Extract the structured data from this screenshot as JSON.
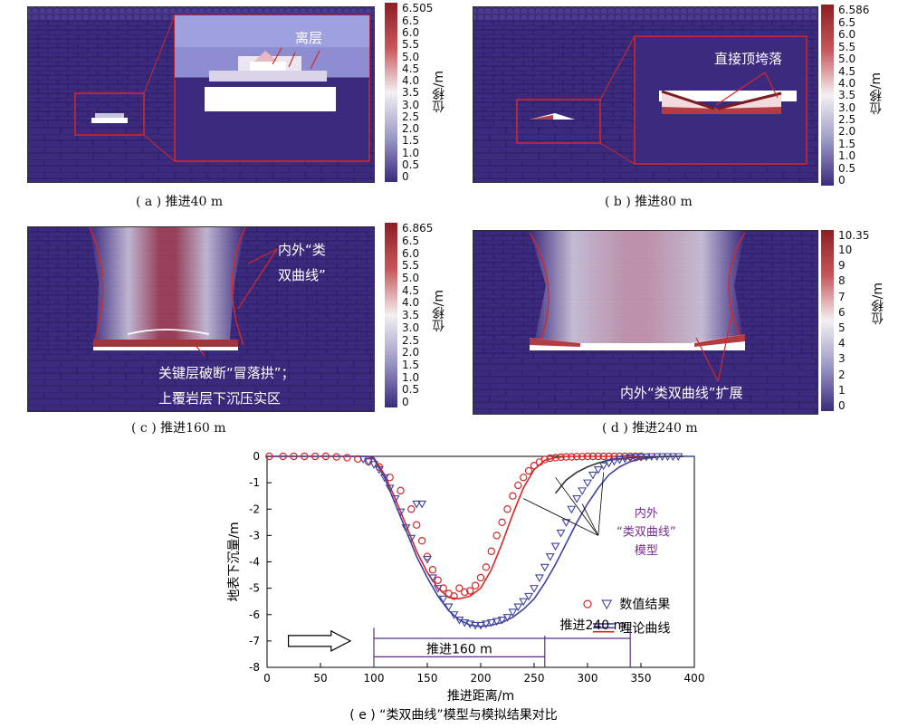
{
  "panels": {
    "a": {
      "caption": "( a ) 推进40 m",
      "max": "6.505",
      "annotation": "离层"
    },
    "b": {
      "caption": "( b ) 推进80 m",
      "max": "6.586",
      "annotation": "直接顶垮落"
    },
    "c": {
      "caption": "( c ) 推进160 m",
      "max": "6.865",
      "annotation_top_1": "内外“类",
      "annotation_top_2": "双曲线”",
      "annotation_bottom_1": "关键层破断“冒落拱”；",
      "annotation_bottom_2": "上覆岩层下沉压实区"
    },
    "d": {
      "caption": "( d ) 推进240 m",
      "max": "10.35",
      "annotation": "内外“类双曲线”扩展"
    }
  },
  "colorbar_title": "位移/m",
  "colorbar_ticks_standard": [
    "6.5",
    "6.0",
    "5.5",
    "5.0",
    "4.5",
    "4.0",
    "3.5",
    "3.0",
    "2.5",
    "2.0",
    "1.5",
    "1.0",
    "0.5",
    "0"
  ],
  "colorbar_ticks_d": [
    "10",
    "9",
    "8",
    "7",
    "6",
    "5",
    "4",
    "3",
    "2",
    "1",
    "0"
  ],
  "colors": {
    "low": "#3b2a7e",
    "mid": "#f4f0f2",
    "high": "#8c1f24",
    "red_line": "#d62728",
    "blue_line": "#3f43a0",
    "model_text": "#7a2a95"
  },
  "chart_data": {
    "type": "scatter",
    "caption": "( e ) “类双曲线”模型与模拟结果对比",
    "xlabel": "推进距离/m",
    "ylabel": "地表下沉量/m",
    "xlim": [
      0,
      400
    ],
    "ylim": [
      -8,
      0
    ],
    "xticks": [
      0,
      50,
      100,
      150,
      200,
      250,
      300,
      350,
      400
    ],
    "yticks": [
      0,
      -1,
      -2,
      -3,
      -4,
      -5,
      -6,
      -7,
      -8
    ],
    "legend": {
      "numeric": "数值结果",
      "theory": "理论曲线",
      "position": "right"
    },
    "annotations": {
      "model_1": "内外",
      "model_2": "“类双曲线”",
      "model_3": "模型",
      "advance_160": "推进160 m",
      "advance_240": "推进240 m"
    },
    "series": [
      {
        "name": "推进160 m 数值结果",
        "marker": "circle",
        "color": "#d62728",
        "x": [
          2,
          15,
          25,
          35,
          45,
          55,
          65,
          75,
          85,
          95,
          105,
          115,
          125,
          135,
          140,
          145,
          150,
          155,
          160,
          165,
          170,
          175,
          180,
          185,
          190,
          195,
          200,
          205,
          210,
          215,
          220,
          225,
          230,
          235,
          240,
          245,
          250,
          255,
          260,
          265,
          270,
          275,
          280,
          285,
          290,
          295,
          300,
          305,
          310,
          315,
          320,
          325,
          330,
          335,
          340,
          345,
          350
        ],
        "y": [
          0,
          0,
          0,
          0,
          0,
          0,
          -0.02,
          -0.05,
          -0.1,
          -0.2,
          -0.4,
          -0.8,
          -1.3,
          -2.0,
          -2.6,
          -3.2,
          -3.8,
          -4.3,
          -4.7,
          -5.0,
          -5.2,
          -5.3,
          -5.0,
          -5.15,
          -5.1,
          -4.9,
          -4.6,
          -4.2,
          -3.6,
          -3.0,
          -2.5,
          -2.0,
          -1.5,
          -1.1,
          -0.8,
          -0.55,
          -0.35,
          -0.22,
          -0.12,
          -0.07,
          -0.05,
          -0.03,
          -0.02,
          -0.02,
          -0.01,
          -0.01,
          0,
          0,
          0,
          0,
          0,
          0,
          0,
          0,
          0,
          0,
          0
        ]
      },
      {
        "name": "推进240 m 数值结果",
        "marker": "triangle",
        "color": "#3f43a0",
        "x": [
          90,
          95,
          100,
          105,
          110,
          115,
          120,
          125,
          130,
          135,
          140,
          145,
          150,
          155,
          160,
          165,
          170,
          175,
          180,
          185,
          190,
          195,
          200,
          205,
          210,
          215,
          220,
          225,
          230,
          235,
          240,
          245,
          250,
          255,
          260,
          265,
          270,
          275,
          280,
          285,
          290,
          295,
          300,
          305,
          310,
          315,
          320,
          325,
          330,
          335,
          340,
          345,
          350,
          355,
          360,
          365,
          370,
          375,
          380,
          385
        ],
        "y": [
          -0.1,
          -0.2,
          -0.3,
          -0.5,
          -0.8,
          -1.2,
          -1.6,
          -2.1,
          -2.7,
          -3.1,
          -1.8,
          -1.8,
          -3.9,
          -4.6,
          -5.0,
          -5.4,
          -5.7,
          -6.0,
          -6.2,
          -6.3,
          -6.35,
          -6.4,
          -6.4,
          -6.35,
          -6.3,
          -6.25,
          -6.2,
          -6.1,
          -5.9,
          -5.7,
          -5.5,
          -5.3,
          -5.0,
          -4.6,
          -4.2,
          -3.8,
          -3.4,
          -2.9,
          -2.5,
          -2.0,
          -1.6,
          -1.3,
          -1.0,
          -0.7,
          -0.5,
          -0.35,
          -0.25,
          -0.18,
          -0.12,
          -0.08,
          -0.05,
          -0.03,
          -0.02,
          -0.01,
          0,
          0,
          0,
          0,
          0,
          0
        ]
      }
    ],
    "theory_curves": [
      {
        "name": "理论曲线 160 m (红)",
        "color": "#d62728",
        "x": [
          0,
          50,
          90,
          100,
          110,
          120,
          130,
          140,
          150,
          160,
          170,
          180,
          190,
          200,
          210,
          220,
          230,
          240,
          250,
          260,
          270,
          280,
          290,
          300,
          350
        ],
        "y": [
          0,
          0,
          0,
          -0.05,
          -0.7,
          -1.6,
          -2.6,
          -3.6,
          -4.4,
          -5.0,
          -5.35,
          -5.4,
          -5.3,
          -5.0,
          -4.3,
          -3.3,
          -2.2,
          -1.2,
          -0.5,
          -0.15,
          -0.05,
          0,
          0,
          0,
          0
        ]
      },
      {
        "name": "理论曲线 240 m (蓝)",
        "color": "#3f43a0",
        "x": [
          0,
          50,
          95,
          100,
          110,
          120,
          130,
          140,
          150,
          160,
          170,
          180,
          190,
          200,
          210,
          220,
          230,
          240,
          250,
          260,
          270,
          280,
          290,
          300,
          310,
          320,
          330,
          340,
          350,
          360,
          370,
          380,
          390,
          400
        ],
        "y": [
          0,
          0,
          0,
          -0.1,
          -0.8,
          -1.8,
          -2.8,
          -3.8,
          -4.6,
          -5.3,
          -5.85,
          -6.2,
          -6.4,
          -6.45,
          -6.4,
          -6.3,
          -6.1,
          -5.8,
          -5.4,
          -4.8,
          -4.1,
          -3.3,
          -2.5,
          -1.8,
          -1.2,
          -0.7,
          -0.4,
          -0.2,
          -0.1,
          -0.05,
          0,
          0,
          0,
          0
        ]
      },
      {
        "name": "理论曲线 外侧 (黑)",
        "color": "#333333",
        "x": [
          270,
          280,
          290,
          300,
          310,
          320,
          330,
          340,
          350,
          360,
          370,
          380,
          390
        ],
        "y": [
          -1.4,
          -0.9,
          -0.6,
          -0.4,
          -0.25,
          -0.15,
          -0.09,
          -0.05,
          -0.03,
          -0.02,
          -0.01,
          0,
          0
        ]
      }
    ]
  }
}
